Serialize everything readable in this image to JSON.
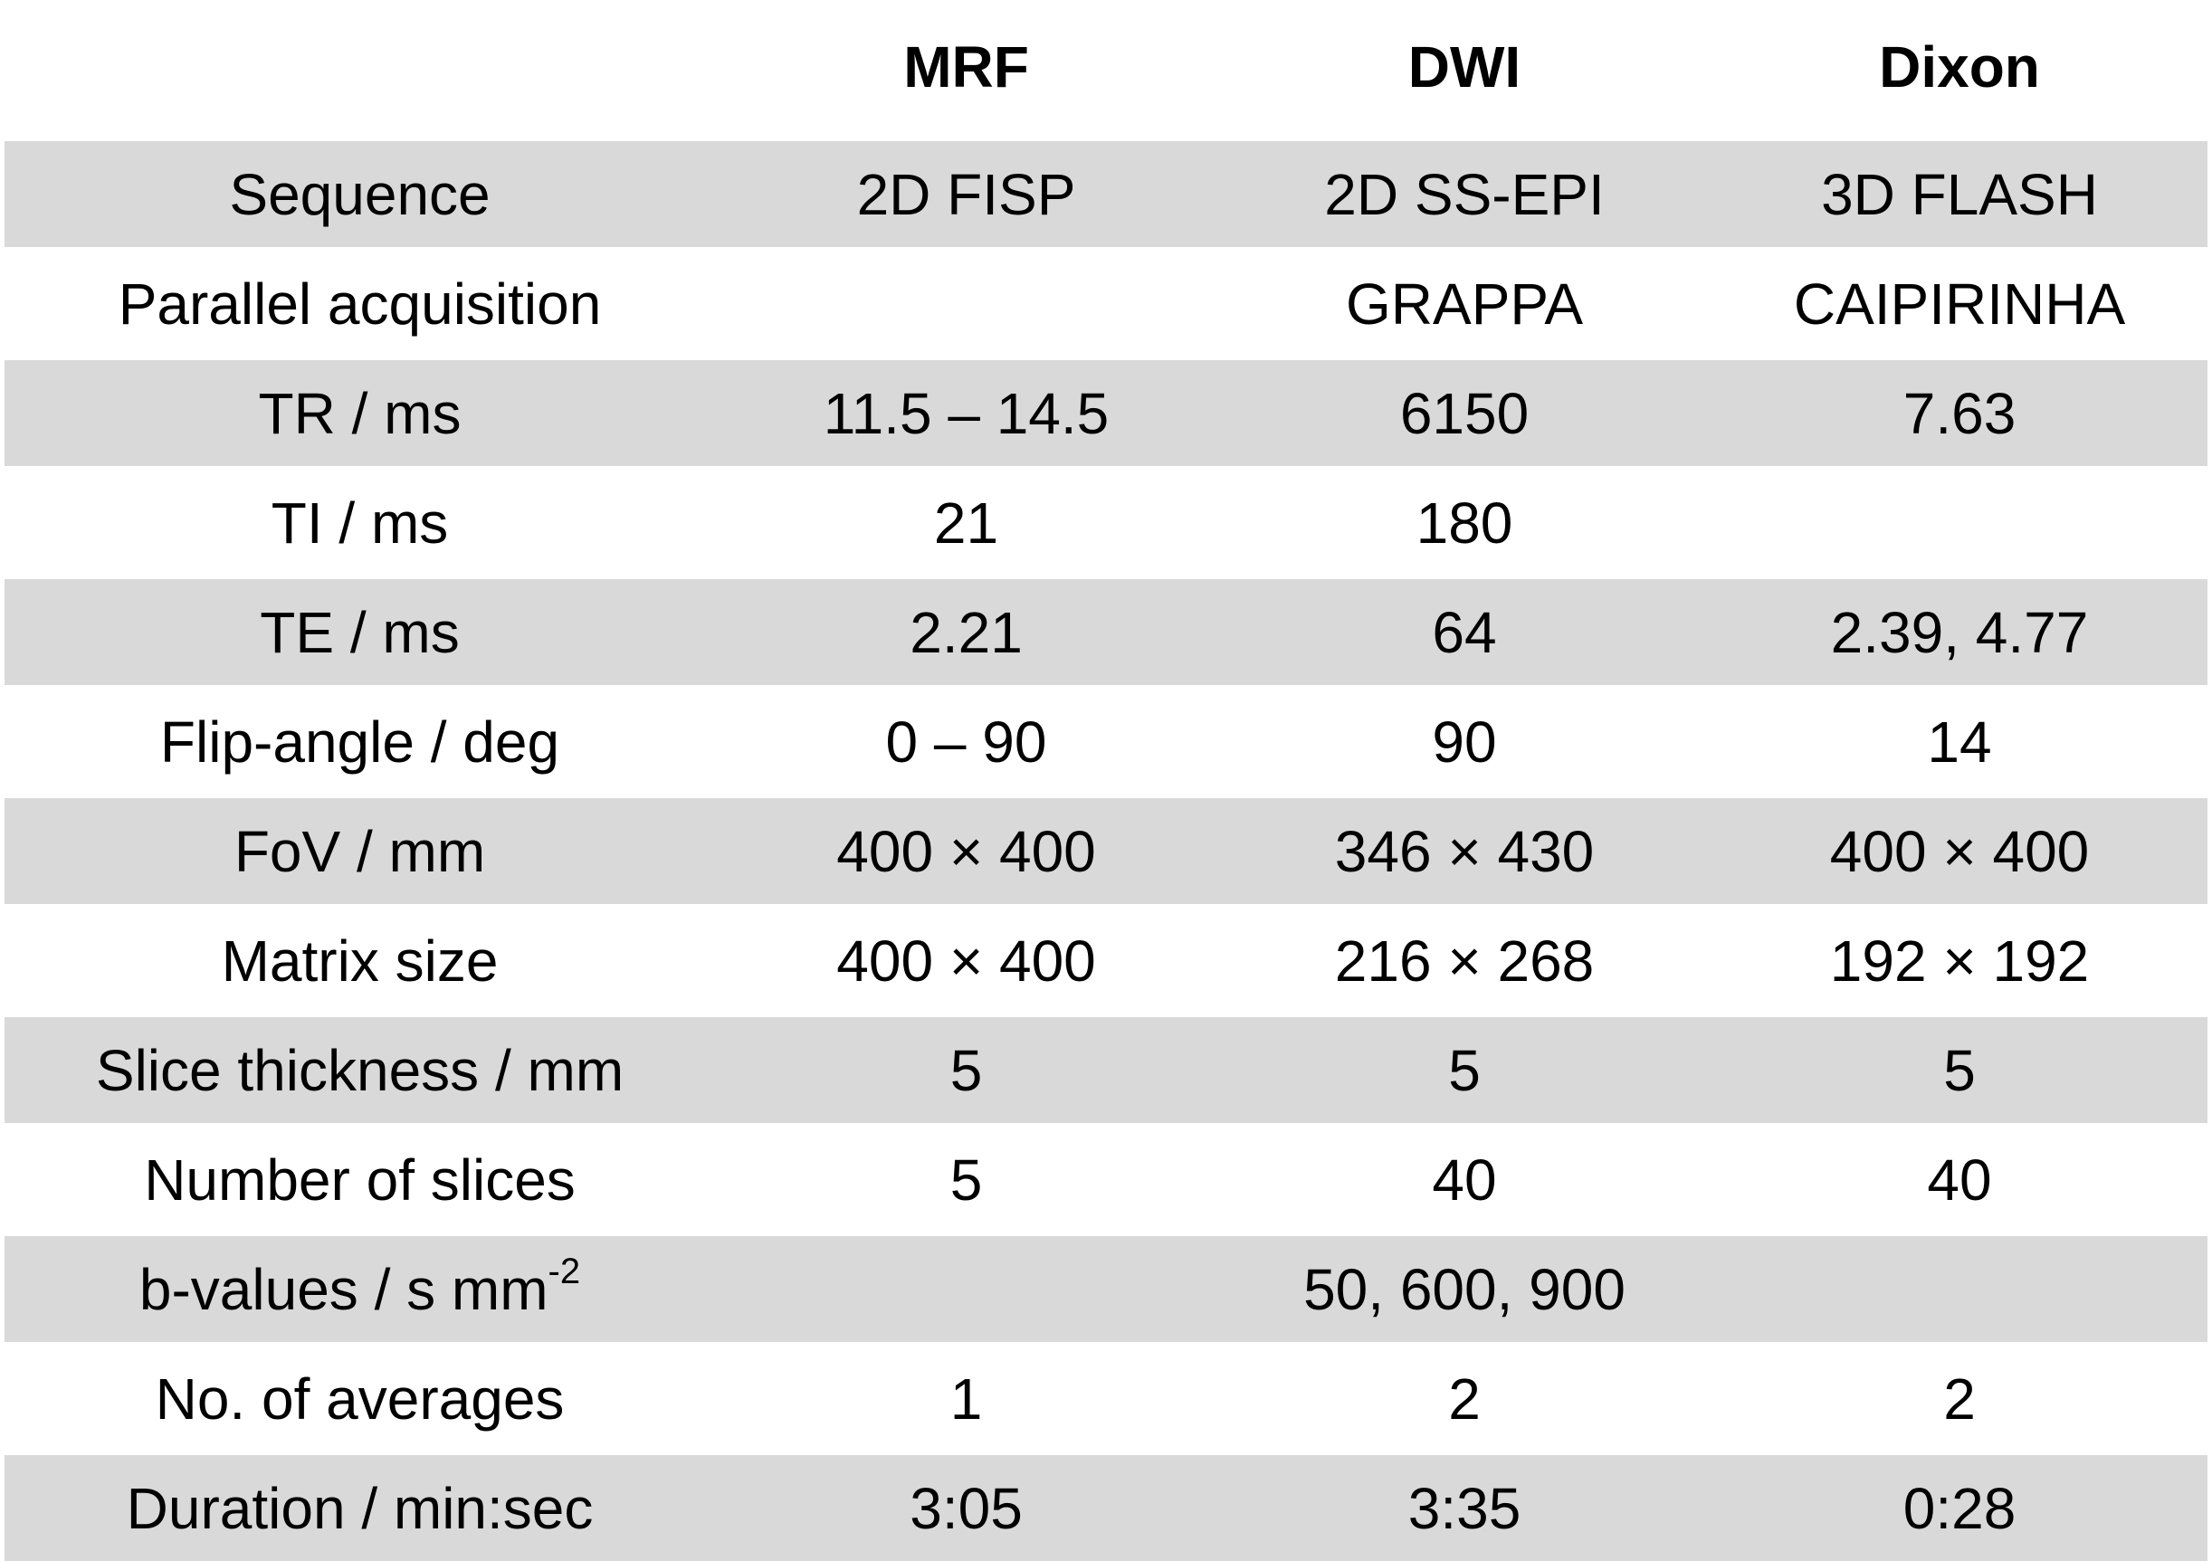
{
  "table": {
    "headers": [
      "",
      "MRF",
      "DWI",
      "Dixon"
    ],
    "rows": [
      {
        "label": "Sequence",
        "mrf": "2D FISP",
        "dwi": "2D SS-EPI",
        "dixon": "3D FLASH"
      },
      {
        "label": "Parallel acquisition",
        "mrf": "",
        "dwi": "GRAPPA",
        "dixon": "CAIPIRINHA"
      },
      {
        "label": "TR / ms",
        "mrf": "11.5 – 14.5",
        "dwi": "6150",
        "dixon": "7.63"
      },
      {
        "label": "TI / ms",
        "mrf": "21",
        "dwi": "180",
        "dixon": ""
      },
      {
        "label": "TE / ms",
        "mrf": "2.21",
        "dwi": "64",
        "dixon": "2.39, 4.77"
      },
      {
        "label": "Flip-angle / deg",
        "mrf": "0 – 90",
        "dwi": "90",
        "dixon": "14"
      },
      {
        "label": "FoV / mm",
        "mrf": "400 × 400",
        "dwi": "346 × 430",
        "dixon": "400 × 400"
      },
      {
        "label": "Matrix size",
        "mrf": "400 × 400",
        "dwi": "216 × 268",
        "dixon": "192 × 192"
      },
      {
        "label": "Slice thickness / mm",
        "mrf": "5",
        "dwi": "5",
        "dixon": "5"
      },
      {
        "label": "Number of slices",
        "mrf": "5",
        "dwi": "40",
        "dixon": "40"
      },
      {
        "label": "b-values / s mm",
        "label_sup": "-2",
        "mrf": "",
        "dwi": "50, 600, 900",
        "dixon": ""
      },
      {
        "label": "No. of averages",
        "mrf": "1",
        "dwi": "2",
        "dixon": "2"
      },
      {
        "label": "Duration / min:sec",
        "mrf": "3:05",
        "dwi": "3:35",
        "dixon": "0:28"
      }
    ]
  },
  "colors": {
    "shaded_row": "#d9d9d9",
    "background": "#ffffff",
    "text": "#000000"
  }
}
